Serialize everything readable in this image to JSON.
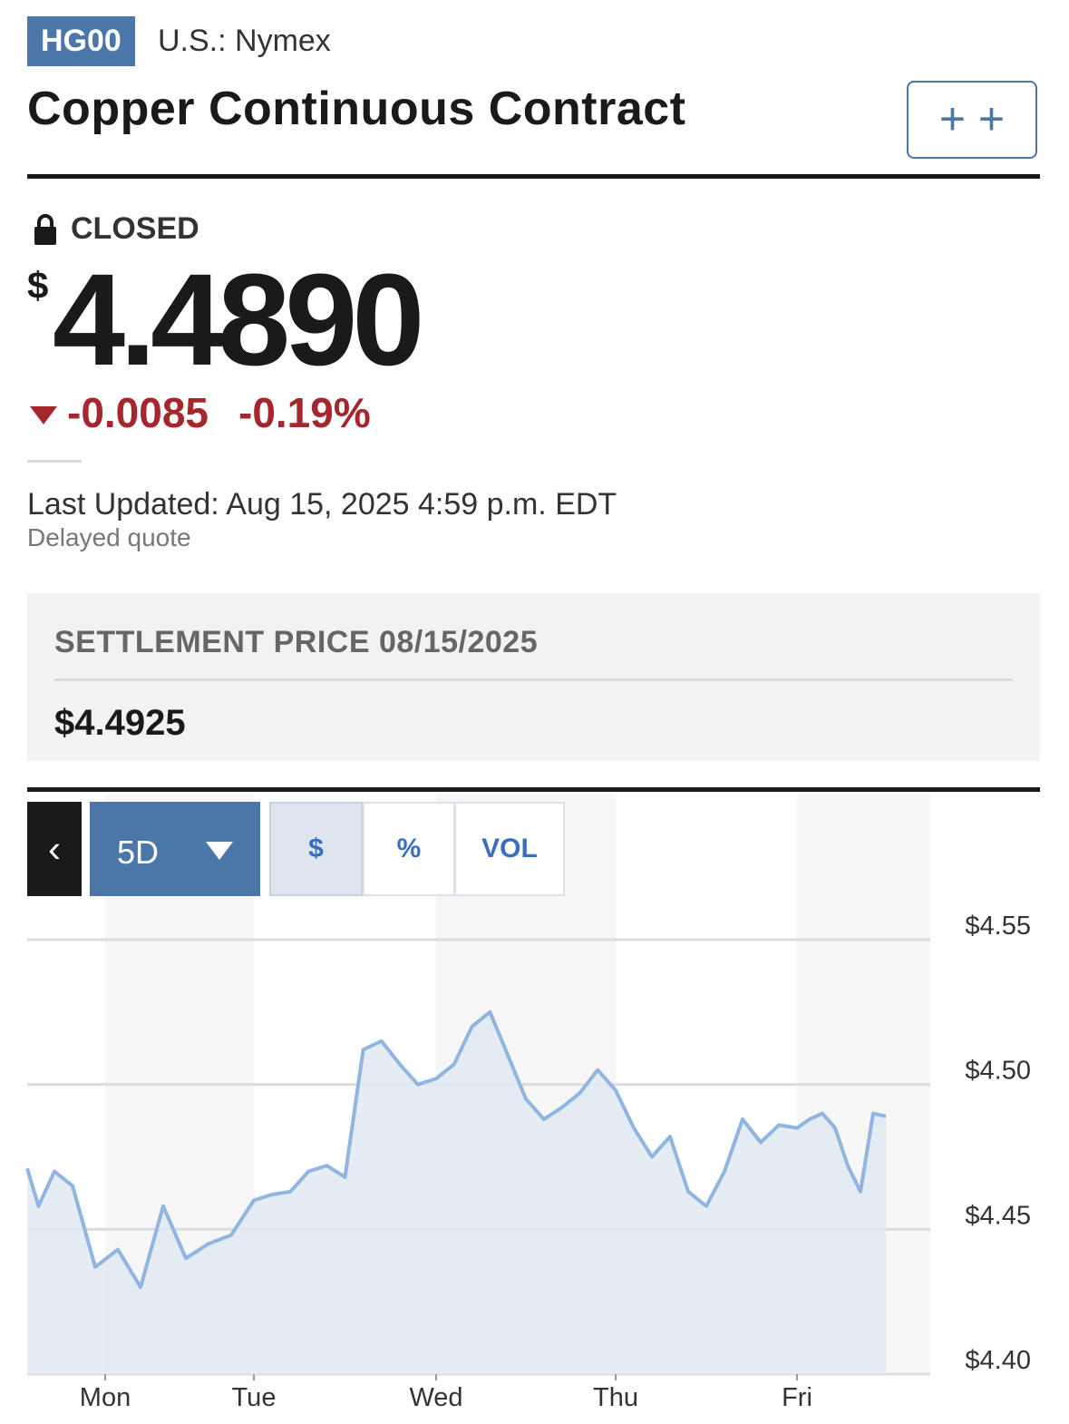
{
  "header": {
    "ticker": "HG00",
    "exchange": "U.S.: Nymex",
    "title": "Copper Continuous Contract",
    "watch_button_label": "+ +"
  },
  "quote": {
    "status": "CLOSED",
    "currency_symbol": "$",
    "price": "4.4890",
    "change": "-0.0085",
    "change_percent": "-0.19%",
    "direction": "down",
    "last_updated": "Last Updated: Aug 15, 2025 4:59 p.m. EDT",
    "note": "Delayed quote"
  },
  "settlement": {
    "label": "SETTLEMENT PRICE 08/15/2025",
    "value": "$4.4925"
  },
  "chart_controls": {
    "back_label": "‹",
    "range_label": "5D",
    "modes": [
      {
        "label": "$",
        "active": true
      },
      {
        "label": "%",
        "active": false
      },
      {
        "label": "VOL",
        "active": false
      }
    ]
  },
  "colors": {
    "brand_blue": "#4a77a8",
    "down_red": "#a4272e",
    "line": "#8fb5e0",
    "area": "#e2e9f1"
  },
  "chart_data": {
    "type": "area",
    "title": "",
    "xlabel": "",
    "ylabel": "",
    "categories": [
      "Mon",
      "Tue",
      "Wed",
      "Thu",
      "Fri"
    ],
    "ylim": [
      4.4,
      4.55
    ],
    "yticks": [
      4.55,
      4.5,
      4.45,
      4.4
    ],
    "ytick_labels": [
      "$4.55",
      "$4.50",
      "$4.45",
      "$4.40"
    ],
    "grid": true,
    "series": [
      {
        "x": [
          0.0,
          0.05,
          0.12,
          0.2,
          0.3,
          0.4,
          0.5,
          0.6,
          0.7,
          0.8,
          0.9,
          1.0,
          1.1,
          1.2,
          1.3,
          1.4,
          1.5,
          1.6,
          1.7,
          1.8,
          1.9,
          2.0,
          2.1,
          2.2,
          2.3,
          2.4,
          2.5,
          2.6,
          2.7,
          2.8,
          2.9,
          3.0,
          3.1,
          3.2,
          3.3,
          3.4,
          3.5,
          3.6,
          3.7,
          3.8,
          3.9,
          4.0,
          4.1,
          4.2,
          4.3,
          4.4,
          4.5,
          4.6,
          4.7
        ],
        "values": [
          4.471,
          4.458,
          4.47,
          4.465,
          4.437,
          4.443,
          4.43,
          4.458,
          4.44,
          4.445,
          4.448,
          4.46,
          4.462,
          4.463,
          4.47,
          4.472,
          4.468,
          4.512,
          4.515,
          4.507,
          4.5,
          4.502,
          4.507,
          4.52,
          4.525,
          4.51,
          4.495,
          4.488,
          4.492,
          4.497,
          4.505,
          4.498,
          4.485,
          4.475,
          4.482,
          4.463,
          4.458,
          4.47,
          4.488,
          4.48,
          4.486,
          4.485,
          4.488,
          4.49,
          4.485,
          4.472,
          4.463,
          4.49,
          4.489
        ]
      }
    ]
  }
}
